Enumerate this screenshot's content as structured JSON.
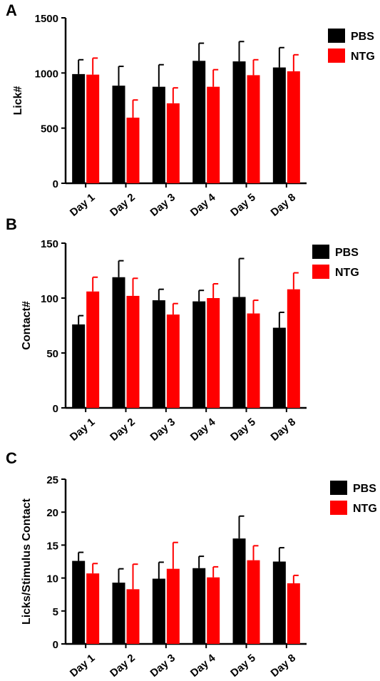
{
  "colors": {
    "PBS": "#000000",
    "NTG": "#ff0000",
    "axis": "#000000"
  },
  "chart_data": [
    {
      "type": "bar",
      "panel_label": "A",
      "ylabel": "Lick#",
      "xlabel": "",
      "ylim": [
        0,
        1500
      ],
      "yticks": [
        0,
        500,
        1000,
        1500
      ],
      "categories": [
        "Day 1",
        "Day 2",
        "Day 3",
        "Day 4",
        "Day 5",
        "Day 8"
      ],
      "series": [
        {
          "name": "PBS",
          "values": [
            990,
            885,
            875,
            1110,
            1105,
            1050
          ],
          "error": [
            130,
            175,
            200,
            160,
            180,
            180
          ]
        },
        {
          "name": "NTG",
          "values": [
            985,
            595,
            725,
            875,
            980,
            1015
          ],
          "error": [
            150,
            160,
            140,
            155,
            140,
            150
          ]
        }
      ],
      "legend": "top-right",
      "grid": false
    },
    {
      "type": "bar",
      "panel_label": "B",
      "ylabel": "Contact#",
      "xlabel": "",
      "ylim": [
        0,
        150
      ],
      "yticks": [
        0,
        50,
        100,
        150
      ],
      "categories": [
        "Day 1",
        "Day 2",
        "Day 3",
        "Day 4",
        "Day 5",
        "Day 8"
      ],
      "series": [
        {
          "name": "PBS",
          "values": [
            76,
            119,
            98,
            97,
            101,
            73
          ],
          "error": [
            8,
            15,
            10,
            10,
            35,
            14
          ]
        },
        {
          "name": "NTG",
          "values": [
            106,
            102,
            85,
            100,
            86,
            108
          ],
          "error": [
            13,
            16,
            10,
            13,
            12,
            15
          ]
        }
      ],
      "legend": "top-right",
      "grid": false
    },
    {
      "type": "bar",
      "panel_label": "C",
      "ylabel": "Licks/Stimulus Contact",
      "xlabel": "",
      "ylim": [
        0,
        25
      ],
      "yticks": [
        0,
        5,
        10,
        15,
        20,
        25
      ],
      "categories": [
        "Day 1",
        "Day 2",
        "Day 3",
        "Day 4",
        "Day 5",
        "Day 8"
      ],
      "series": [
        {
          "name": "PBS",
          "values": [
            12.6,
            9.3,
            9.9,
            11.5,
            16.0,
            12.5
          ],
          "error": [
            1.3,
            2.1,
            2.5,
            1.8,
            3.4,
            2.1
          ]
        },
        {
          "name": "NTG",
          "values": [
            10.7,
            8.3,
            11.4,
            10.1,
            12.7,
            9.2
          ],
          "error": [
            1.5,
            3.8,
            4.0,
            1.6,
            2.2,
            1.2
          ]
        }
      ],
      "legend": "top-right",
      "grid": false
    }
  ]
}
